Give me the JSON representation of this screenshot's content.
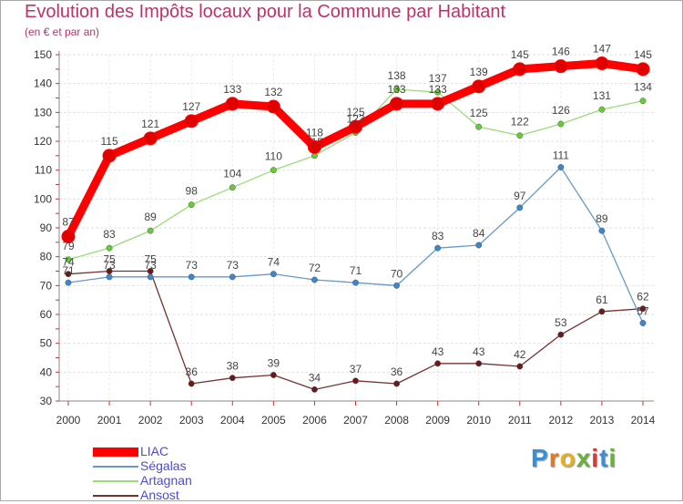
{
  "chart_data": {
    "type": "line",
    "title": "Evolution des Impôts locaux pour la Commune par Habitant",
    "subtitle": "(en € et par an)",
    "x": [
      "2000",
      "2001",
      "2002",
      "2003",
      "2004",
      "2005",
      "2006",
      "2007",
      "2008",
      "2009",
      "2010",
      "2011",
      "2012",
      "2013",
      "2014"
    ],
    "ylim": [
      30,
      150
    ],
    "yticks": [
      30,
      40,
      50,
      60,
      70,
      80,
      90,
      100,
      110,
      120,
      130,
      140,
      150
    ],
    "series": [
      {
        "name": "LIAC",
        "color": "#ff0000",
        "marker": "#e00000",
        "values": [
          87,
          115,
          121,
          127,
          133,
          132,
          118,
          125,
          133,
          133,
          139,
          145,
          146,
          147,
          145
        ]
      },
      {
        "name": "Ségalas",
        "color": "#6699cc",
        "marker": "#3a87d0",
        "values": [
          71,
          73,
          73,
          73,
          73,
          74,
          72,
          71,
          70,
          83,
          84,
          97,
          111,
          89,
          57
        ]
      },
      {
        "name": "Artagnan",
        "color": "#99dd77",
        "marker": "#66cc33",
        "values": [
          79,
          83,
          89,
          98,
          104,
          110,
          115,
          123,
          138,
          137,
          125,
          122,
          126,
          131,
          134
        ]
      },
      {
        "name": "Ansost",
        "color": "#7a3030",
        "marker": "#6a1a1a",
        "values": [
          74,
          75,
          75,
          36,
          38,
          39,
          34,
          37,
          36,
          43,
          43,
          42,
          53,
          61,
          62
        ]
      }
    ]
  },
  "logo": {
    "text": "Proxiti",
    "letters": [
      "P",
      "r",
      "o",
      "x",
      "i",
      "t",
      "i"
    ],
    "colors": [
      "#3a8fd8",
      "#e07a20",
      "#e8b020",
      "#6ab03a",
      "#d83a3a",
      "#3a8fd8",
      "#6ab03a"
    ]
  }
}
